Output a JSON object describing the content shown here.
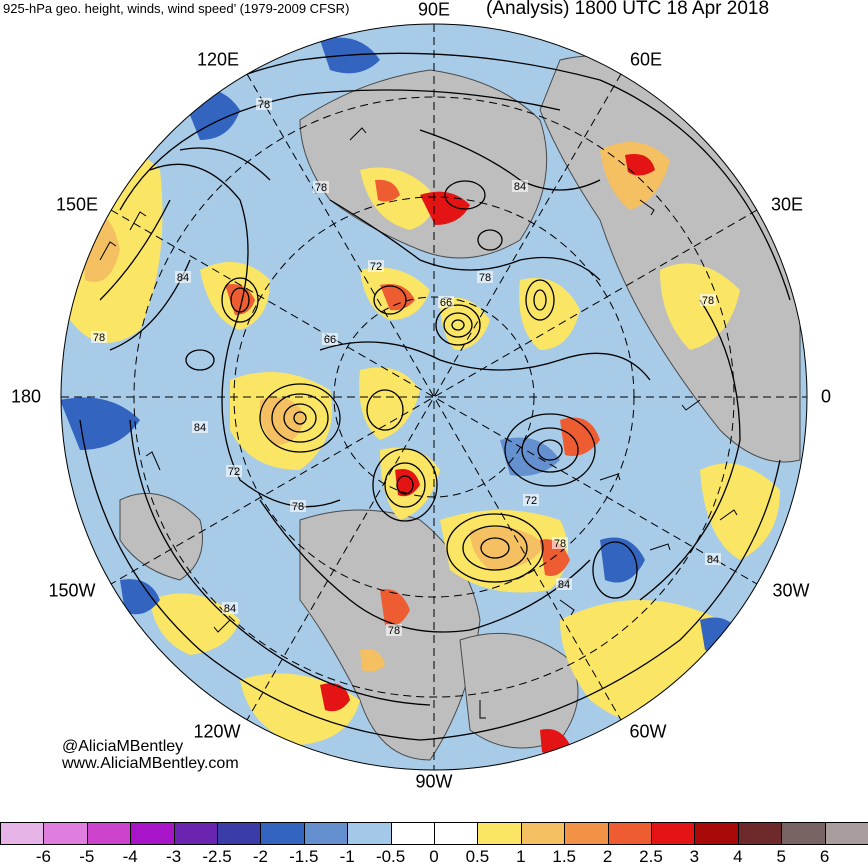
{
  "header": {
    "left_title": "925-hPa geo. height, winds, wind speed’ (1979-2009 CFSR)",
    "right_title": "(Analysis) 1800 UTC 18 Apr 2018"
  },
  "map": {
    "projection": "north-polar-stereographic",
    "longitude_labels": [
      {
        "label": "90E",
        "name": "lon-label-90e"
      },
      {
        "label": "120E",
        "name": "lon-label-120e"
      },
      {
        "label": "60E",
        "name": "lon-label-60e"
      },
      {
        "label": "150E",
        "name": "lon-label-150e"
      },
      {
        "label": "30E",
        "name": "lon-label-30e"
      },
      {
        "label": "180",
        "name": "lon-label-180"
      },
      {
        "label": "0",
        "name": "lon-label-0"
      },
      {
        "label": "150W",
        "name": "lon-label-150w"
      },
      {
        "label": "30W",
        "name": "lon-label-30w"
      },
      {
        "label": "120W",
        "name": "lon-label-120w"
      },
      {
        "label": "60W",
        "name": "lon-label-60w"
      },
      {
        "label": "90W",
        "name": "lon-label-90w"
      }
    ],
    "contour_labels": [
      "78",
      "78",
      "84",
      "78",
      "72",
      "78",
      "78",
      "66",
      "66",
      "84",
      "72",
      "78",
      "72",
      "78",
      "84",
      "84",
      "84",
      "78",
      "84"
    ]
  },
  "credits": {
    "handle": "@AliciaMBentley",
    "website": "www.AliciaMBentley.com"
  },
  "colorbar": {
    "colors": [
      "#e6b4e6",
      "#e07ee0",
      "#cc44cc",
      "#a814c8",
      "#6a24b0",
      "#3c3ca8",
      "#3264c0",
      "#6490d0",
      "#a4c8e8",
      "#ffffff",
      "#ffffff",
      "#fae664",
      "#f4c062",
      "#f29246",
      "#ee5c32",
      "#e41414",
      "#a80a0a",
      "#6e2a2a",
      "#786464",
      "#a89c9c"
    ],
    "ticks": [
      "-6",
      "-5",
      "-4",
      "-3",
      "-2.5",
      "-2",
      "-1.5",
      "-1",
      "-0.5",
      "0",
      "0.5",
      "1",
      "1.5",
      "2",
      "2.5",
      "3",
      "4",
      "5",
      "6"
    ],
    "land_color": "#bebebe",
    "coast_color": "#4a4a4a"
  }
}
